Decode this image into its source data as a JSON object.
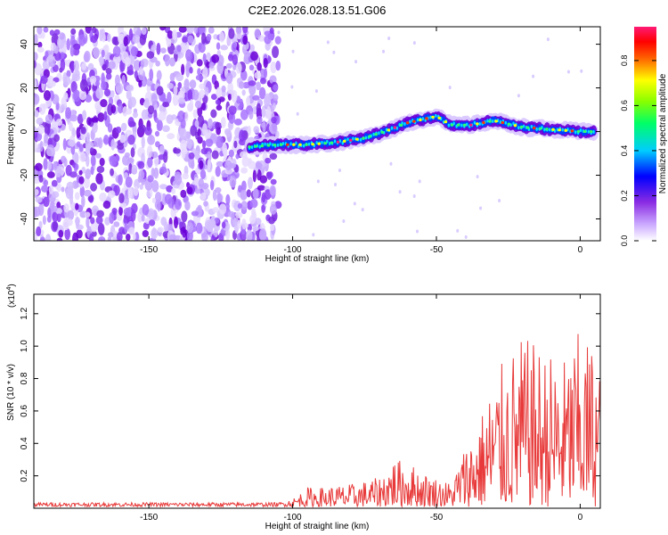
{
  "title": "C2E2.2026.028.13.51.G06",
  "chart_data": [
    {
      "type": "heatmap",
      "xlabel": "Height of straight line (km)",
      "ylabel": "Frequency (Hz)",
      "xlim": [
        -190,
        7
      ],
      "ylim": [
        -50,
        48
      ],
      "xticks": [
        -150,
        -100,
        -50,
        0
      ],
      "yticks": [
        -40,
        -20,
        0,
        20,
        40
      ],
      "noise_region_x": [
        -190,
        -105
      ],
      "ridge": {
        "description_points_x": [
          -115,
          -105,
          -95,
          -85,
          -75,
          -68,
          -60,
          -50,
          -45,
          -38,
          -30,
          -20,
          -10,
          0,
          5
        ],
        "description_points_y": [
          -7,
          -6,
          -6,
          -5,
          -3,
          0,
          4,
          7,
          3,
          3,
          5,
          2,
          1,
          0,
          0
        ]
      },
      "colorbar": {
        "label": "Normalized spectral amplitude",
        "range": [
          0.0,
          0.95
        ],
        "ticks": [
          0.0,
          0.2,
          0.4,
          0.6,
          0.8
        ],
        "colors": [
          "#ffffff",
          "#8a2be2",
          "#0000ff",
          "#00ffff",
          "#00ff00",
          "#ffff00",
          "#ff0000",
          "#ff0080"
        ]
      }
    },
    {
      "type": "line",
      "xlabel": "Height of straight line (km)",
      "ylabel": "SNR (10 * v/v)",
      "yscale_label": "(x10",
      "yscale_exp": "4",
      "xlim": [
        -190,
        7
      ],
      "ylim": [
        0.0,
        1.32
      ],
      "xticks": [
        -150,
        -100,
        -50,
        0
      ],
      "yticks": [
        0.2,
        0.4,
        0.6,
        0.8,
        1.0,
        1.2
      ],
      "ytick_labels": [
        "0.2",
        "0.4",
        "0.6",
        "0.8",
        "1.0",
        "1.2"
      ],
      "color": "#e83a3a",
      "envelope": {
        "x": [
          -190,
          -105,
          -100,
          -95,
          -90,
          -80,
          -70,
          -65,
          -60,
          -55,
          -50,
          -45,
          -40,
          -35,
          -30,
          -25,
          -20,
          -15,
          -10,
          -5,
          0,
          5,
          7
        ],
        "y": [
          0.03,
          0.03,
          0.05,
          0.12,
          0.12,
          0.14,
          0.18,
          0.3,
          0.28,
          0.22,
          0.18,
          0.15,
          0.38,
          0.55,
          0.8,
          0.95,
          1.05,
          1.0,
          0.95,
          0.92,
          1.1,
          1.0,
          0.9
        ]
      }
    }
  ]
}
